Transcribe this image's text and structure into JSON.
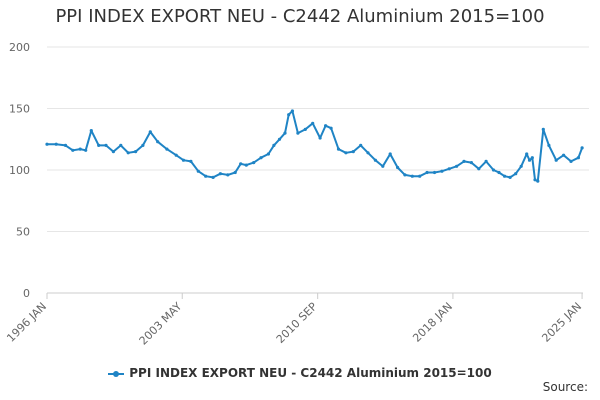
{
  "chart_data": {
    "type": "line",
    "title": "PPI INDEX EXPORT NEU - C2442 Aluminium 2015=100",
    "xlabel": "",
    "ylabel": "",
    "ylim": [
      0,
      200
    ],
    "yticks": [
      0,
      50,
      100,
      150,
      200
    ],
    "x_tick_labels": [
      "1996 JAN",
      "2003 MAY",
      "2010 SEP",
      "2018 JAN",
      "2025 JAN"
    ],
    "x_tick_positions": [
      1996.0,
      2003.33,
      2010.67,
      2018.0,
      2025.0
    ],
    "xlim": [
      1996.0,
      2025.05
    ],
    "series": [
      {
        "name": "PPI INDEX EXPORT NEU - C2442 Aluminium 2015=100",
        "color": "#1f84c5",
        "x": [
          1996.0,
          1996.5,
          1997.0,
          1997.4,
          1997.8,
          1998.1,
          1998.4,
          1998.8,
          1999.2,
          1999.6,
          2000.0,
          2000.4,
          2000.8,
          2001.2,
          2001.6,
          2002.0,
          2002.5,
          2003.0,
          2003.4,
          2003.8,
          2004.2,
          2004.6,
          2005.0,
          2005.4,
          2005.8,
          2006.2,
          2006.5,
          2006.8,
          2007.2,
          2007.6,
          2008.0,
          2008.3,
          2008.6,
          2008.9,
          2009.1,
          2009.3,
          2009.6,
          2010.0,
          2010.4,
          2010.8,
          2011.1,
          2011.4,
          2011.8,
          2012.2,
          2012.6,
          2013.0,
          2013.4,
          2013.8,
          2014.2,
          2014.6,
          2015.0,
          2015.4,
          2015.8,
          2016.2,
          2016.6,
          2017.0,
          2017.4,
          2017.8,
          2018.2,
          2018.6,
          2019.0,
          2019.4,
          2019.8,
          2020.2,
          2020.5,
          2020.8,
          2021.1,
          2021.4,
          2021.7,
          2022.0,
          2022.15,
          2022.3,
          2022.45,
          2022.6,
          2022.9,
          2023.2,
          2023.6,
          2024.0,
          2024.4,
          2024.8,
          2025.0
        ],
        "values": [
          121,
          121,
          120,
          116,
          117,
          116,
          132,
          120,
          120,
          115,
          120,
          114,
          115,
          120,
          131,
          123,
          117,
          112,
          108,
          107,
          99,
          95,
          94,
          97,
          96,
          98,
          105,
          104,
          106,
          110,
          113,
          120,
          125,
          130,
          145,
          148,
          130,
          133,
          138,
          126,
          136,
          134,
          117,
          114,
          115,
          120,
          114,
          108,
          103,
          113,
          102,
          96,
          95,
          95,
          98,
          98,
          99,
          101,
          103,
          107,
          106,
          101,
          107,
          100,
          98,
          95,
          94,
          97,
          103,
          113,
          108,
          110,
          92,
          91,
          133,
          120,
          108,
          112,
          107,
          110,
          118
        ]
      }
    ],
    "legend": "bottom-center"
  },
  "legend_label": "PPI INDEX EXPORT NEU - C2442 Aluminium 2015=100",
  "source_label": "Source:"
}
